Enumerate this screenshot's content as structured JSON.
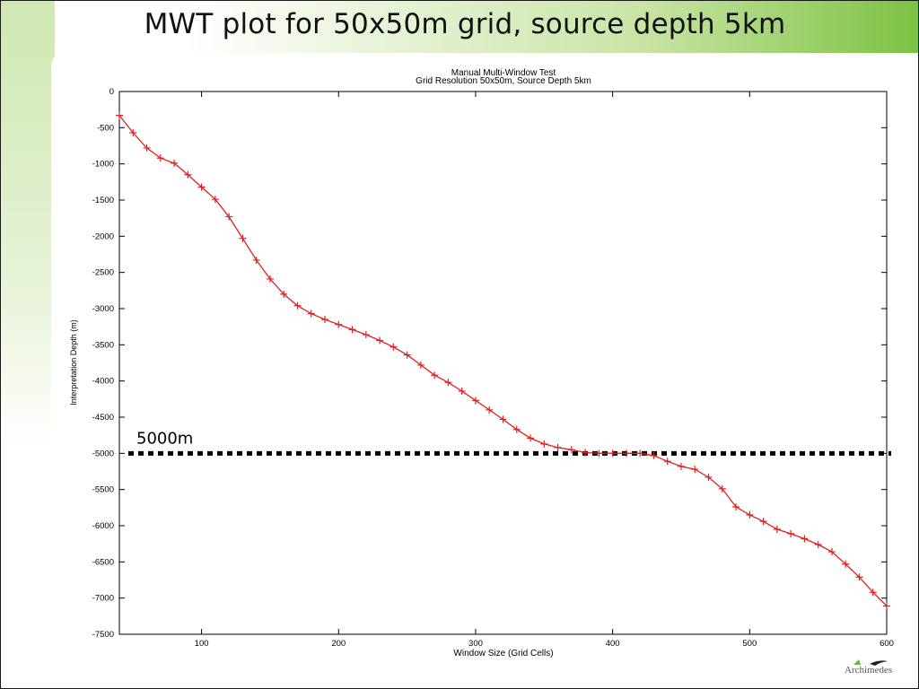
{
  "slide": {
    "title": "MWT plot for 50x50m grid, source depth 5km",
    "logo_text": "Archimedes",
    "logo_icon": "bird-logo-icon"
  },
  "chart_data": {
    "type": "line",
    "title": "Manual Multi-Window Test",
    "subtitle": "Grid Resolution 50x50m, Source Depth 5km",
    "xlabel": "Window Size (Grid Cells)",
    "ylabel": "Interpretation Depth (m)",
    "xlim": [
      40,
      600
    ],
    "ylim": [
      -7500,
      0
    ],
    "xticks": [
      100,
      200,
      300,
      400,
      500,
      600
    ],
    "yticks": [
      0,
      -500,
      -1000,
      -1500,
      -2000,
      -2500,
      -3000,
      -3500,
      -4000,
      -4500,
      -5000,
      -5500,
      -6000,
      -6500,
      -7000,
      -7500
    ],
    "grid": false,
    "series": [
      {
        "color": "#e02020",
        "marker": "plus",
        "x": [
          40,
          50,
          60,
          70,
          80,
          90,
          100,
          110,
          120,
          130,
          140,
          150,
          160,
          170,
          180,
          190,
          200,
          210,
          220,
          230,
          240,
          250,
          260,
          270,
          280,
          290,
          300,
          310,
          320,
          330,
          340,
          350,
          360,
          370,
          380,
          390,
          400,
          410,
          420,
          430,
          440,
          450,
          460,
          470,
          480,
          490,
          500,
          510,
          520,
          530,
          540,
          550,
          560,
          570,
          580,
          590,
          600
        ],
        "values": [
          -330,
          -570,
          -780,
          -920,
          -990,
          -1150,
          -1320,
          -1490,
          -1730,
          -2030,
          -2330,
          -2590,
          -2800,
          -2960,
          -3070,
          -3150,
          -3220,
          -3290,
          -3360,
          -3440,
          -3530,
          -3640,
          -3780,
          -3920,
          -4020,
          -4140,
          -4270,
          -4400,
          -4530,
          -4670,
          -4790,
          -4870,
          -4920,
          -4950,
          -4990,
          -5000,
          -5000,
          -5000,
          -5000,
          -5030,
          -5110,
          -5180,
          -5220,
          -5330,
          -5490,
          -5740,
          -5850,
          -5940,
          -6050,
          -6110,
          -6180,
          -6260,
          -6360,
          -6530,
          -6710,
          -6920,
          -7110
        ]
      }
    ],
    "reference_line": {
      "y": -5000,
      "label": "5000m",
      "color": "#000000",
      "style": "dotted"
    }
  }
}
